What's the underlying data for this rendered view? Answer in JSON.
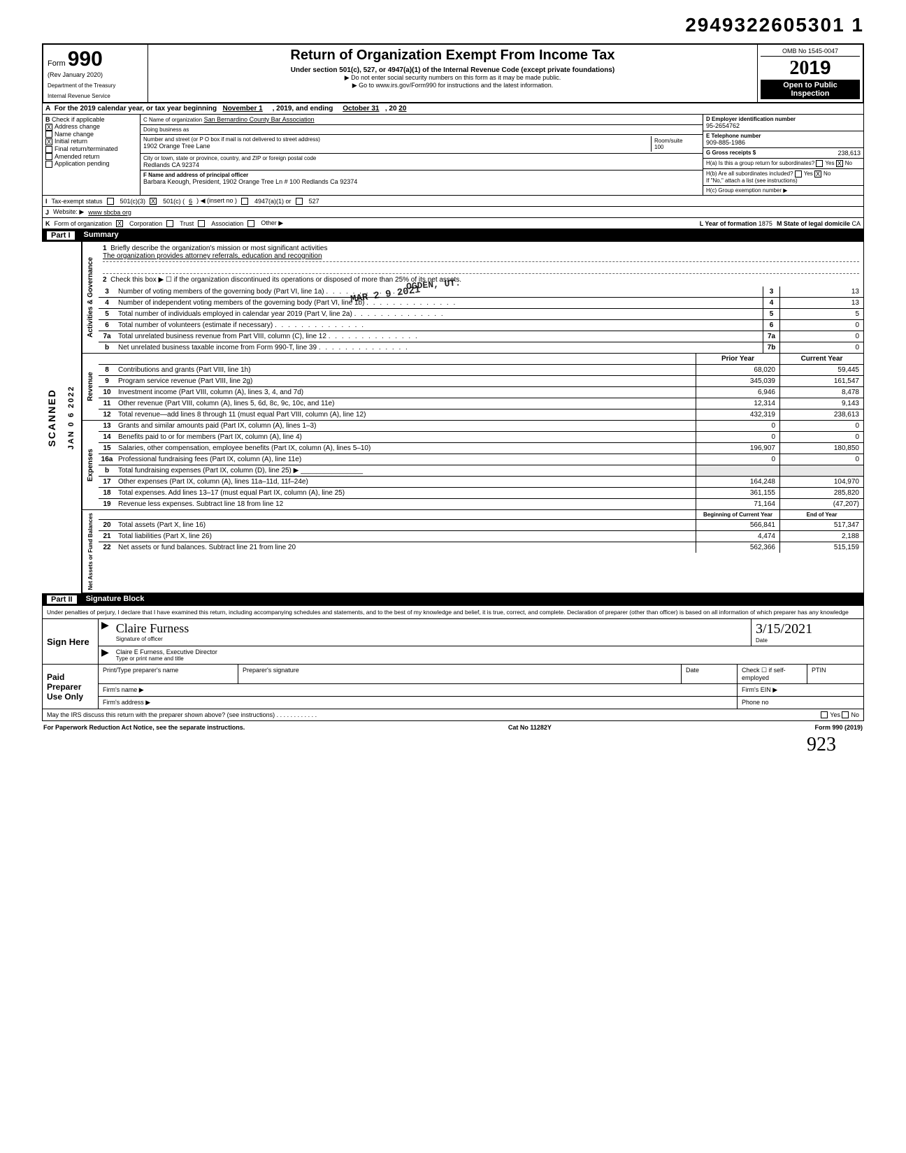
{
  "doc_number": "2949322605301 1",
  "form": {
    "label": "Form",
    "number": "990",
    "rev": "(Rev January 2020)",
    "dept1": "Department of the Treasury",
    "dept2": "Internal Revenue Service",
    "title": "Return of Organization Exempt From Income Tax",
    "subtitle": "Under section 501(c), 527, or 4947(a)(1) of the Internal Revenue Code (except private foundations)",
    "warn": "▶ Do not enter social security numbers on this form as it may be made public.",
    "goto": "▶ Go to www.irs.gov/Form990 for instructions and the latest information.",
    "omb": "OMB No 1545-0047",
    "year_prefix": "20",
    "year_bold": "19",
    "open1": "Open to Public",
    "open2": "Inspection"
  },
  "lineA": {
    "text": "For the 2019 calendar year, or tax year beginning",
    "begin": "November 1",
    "mid": ", 2019, and ending",
    "end": "October 31",
    "end2": ", 20",
    "end_yr": "20"
  },
  "colB": {
    "hdr": "Check if applicable",
    "items": [
      {
        "label": "Address change",
        "checked": true
      },
      {
        "label": "Name change",
        "checked": false
      },
      {
        "label": "Initial return",
        "checked": true
      },
      {
        "label": "Final return/terminated",
        "checked": false
      },
      {
        "label": "Amended return",
        "checked": false
      },
      {
        "label": "Application pending",
        "checked": false
      }
    ]
  },
  "colC": {
    "name_lbl": "C Name of organization",
    "name": "San Bernardino County Bar Association",
    "dba_lbl": "Doing business as",
    "dba": "",
    "addr_lbl": "Number and street (or P O box if mail is not delivered to street address)",
    "addr": "1902 Orange Tree Lane",
    "city_lbl": "City or town, state or province, country, and ZIP or foreign postal code",
    "city": "Redlands CA 92374",
    "room_lbl": "Room/suite",
    "room": "100",
    "officer_lbl": "F Name and address of principal officer",
    "officer": "Barbara Keough, President, 1902 Orange Tree Ln # 100 Redlands Ca 92374"
  },
  "colD": {
    "ein_lbl": "D Employer identification number",
    "ein": "95-2654762",
    "tel_lbl": "E Telephone number",
    "tel": "909-885-1986",
    "gross_lbl": "G Gross receipts $",
    "gross": "238,613",
    "ha": "H(a) Is this a group return for subordinates?",
    "ha_yes": "Yes",
    "ha_no": "No",
    "ha_no_checked": true,
    "hb": "H(b) Are all subordinates included?",
    "hb_yes": "Yes",
    "hb_no": "No",
    "hb_no_checked": true,
    "hb_note": "If \"No,\" attach a list (see instructions)",
    "hc": "H(c) Group exemption number ▶"
  },
  "lineI": {
    "lbl": "Tax-exempt status",
    "opt1": "501(c)(3)",
    "opt2_pre": "501(c) (",
    "opt2_num": "6",
    "opt2_post": ") ◀ (insert no )",
    "opt2_checked": true,
    "opt3": "4947(a)(1) or",
    "opt4": "527"
  },
  "lineJ": {
    "lbl": "Website: ▶",
    "val": "www sbcba org"
  },
  "lineK": {
    "lbl": "Form of organization",
    "corp": "Corporation",
    "corp_checked": true,
    "trust": "Trust",
    "assoc": "Association",
    "other": "Other ▶",
    "yof_lbl": "L Year of formation",
    "yof": "1875",
    "state_lbl": "M State of legal domicile",
    "state": "CA"
  },
  "partI": {
    "num": "Part I",
    "title": "Summary"
  },
  "side_labels": {
    "gov": "Activities & Governance",
    "rev": "Revenue",
    "exp": "Expenses",
    "net": "Net Assets or\nFund Balances",
    "stamp_date": "JAN 0 6 2022",
    "stamp_scanned": "SCANNED"
  },
  "summary": {
    "l1_lbl": "Briefly describe the organization's mission or most significant activities",
    "l1_val": "The organization provides attorney referrals, education and recognition",
    "l2": "Check this box ▶ ☐ if the organization discontinued its operations or disposed of more than 25% of its net assets.",
    "rows_single": [
      {
        "n": "3",
        "desc": "Number of voting members of the governing body (Part VI, line 1a)",
        "box": "3",
        "val": "13"
      },
      {
        "n": "4",
        "desc": "Number of independent voting members of the governing body (Part VI, line 1b)",
        "box": "4",
        "val": "13"
      },
      {
        "n": "5",
        "desc": "Total number of individuals employed in calendar year 2019 (Part V, line 2a)",
        "box": "5",
        "val": "5"
      },
      {
        "n": "6",
        "desc": "Total number of volunteers (estimate if necessary)",
        "box": "6",
        "val": "0"
      },
      {
        "n": "7a",
        "desc": "Total unrelated business revenue from Part VIII, column (C), line 12",
        "box": "7a",
        "val": "0"
      },
      {
        "n": "b",
        "desc": "Net unrelated business taxable income from Form 990-T, line 39",
        "box": "7b",
        "val": "0"
      }
    ],
    "col_hdr_prior": "Prior Year",
    "col_hdr_curr": "Current Year",
    "rows_rev": [
      {
        "n": "8",
        "desc": "Contributions and grants (Part VIII, line 1h)",
        "p": "68,020",
        "c": "59,445"
      },
      {
        "n": "9",
        "desc": "Program service revenue (Part VIII, line 2g)",
        "p": "345,039",
        "c": "161,547"
      },
      {
        "n": "10",
        "desc": "Investment income (Part VIII, column (A), lines 3, 4, and 7d)",
        "p": "6,946",
        "c": "8,478"
      },
      {
        "n": "11",
        "desc": "Other revenue (Part VIII, column (A), lines 5, 6d, 8c, 9c, 10c, and 11e)",
        "p": "12,314",
        "c": "9,143"
      },
      {
        "n": "12",
        "desc": "Total revenue—add lines 8 through 11 (must equal Part VIII, column (A), line 12)",
        "p": "432,319",
        "c": "238,613"
      }
    ],
    "rows_exp": [
      {
        "n": "13",
        "desc": "Grants and similar amounts paid (Part IX, column (A), lines 1–3)",
        "p": "0",
        "c": "0"
      },
      {
        "n": "14",
        "desc": "Benefits paid to or for members (Part IX, column (A), line 4)",
        "p": "0",
        "c": "0"
      },
      {
        "n": "15",
        "desc": "Salaries, other compensation, employee benefits (Part IX, column (A), lines 5–10)",
        "p": "196,907",
        "c": "180,850"
      },
      {
        "n": "16a",
        "desc": "Professional fundraising fees (Part IX, column (A), line 11e)",
        "p": "0",
        "c": "0"
      },
      {
        "n": "b",
        "desc": "Total fundraising expenses (Part IX, column (D), line 25) ▶ ________________",
        "p": "",
        "c": "",
        "shade": true
      },
      {
        "n": "17",
        "desc": "Other expenses (Part IX, column (A), lines 11a–11d, 11f–24e)",
        "p": "164,248",
        "c": "104,970"
      },
      {
        "n": "18",
        "desc": "Total expenses. Add lines 13–17 (must equal Part IX, column (A), line 25)",
        "p": "361,155",
        "c": "285,820"
      },
      {
        "n": "19",
        "desc": "Revenue less expenses. Subtract line 18 from line 12",
        "p": "71,164",
        "c": "(47,207)"
      }
    ],
    "col_hdr_beg": "Beginning of Current Year",
    "col_hdr_end": "End of Year",
    "rows_net": [
      {
        "n": "20",
        "desc": "Total assets (Part X, line 16)",
        "p": "566,841",
        "c": "517,347"
      },
      {
        "n": "21",
        "desc": "Total liabilities (Part X, line 26)",
        "p": "4,474",
        "c": "2,188"
      },
      {
        "n": "22",
        "desc": "Net assets or fund balances. Subtract line 21 from line 20",
        "p": "562,366",
        "c": "515,159"
      }
    ]
  },
  "stamps": {
    "recv": "MAR 2 9 2021",
    "ogden": "OGDEN, UT."
  },
  "partII": {
    "num": "Part II",
    "title": "Signature Block"
  },
  "sig": {
    "perjury": "Under penalties of perjury, I declare that I have examined this return, including accompanying schedules and statements, and to the best of my knowledge and belief, it is true, correct, and complete. Declaration of preparer (other than officer) is based on all information of which preparer has any knowledge",
    "sign_here": "Sign Here",
    "sig_of_officer": "Signature of officer",
    "date_lbl": "Date",
    "date_val": "3/15/2021",
    "name_title": "Claire E Furness, Executive Director",
    "type_name": "Type or print name and title",
    "paid": "Paid Preparer Use Only",
    "pname_lbl": "Print/Type preparer's name",
    "psig_lbl": "Preparer's signature",
    "pdate_lbl": "Date",
    "pcheck": "Check ☐ if self-employed",
    "ptin": "PTIN",
    "firm_name": "Firm's name ▶",
    "firm_ein": "Firm's EIN ▶",
    "firm_addr": "Firm's address ▶",
    "phone": "Phone no",
    "discuss": "May the IRS discuss this return with the preparer shown above? (see instructions)",
    "yes": "Yes",
    "no": "No"
  },
  "footer": {
    "pra": "For Paperwork Reduction Act Notice, see the separate instructions.",
    "cat": "Cat No 11282Y",
    "form": "Form 990 (2019)",
    "init": "923"
  },
  "letters": {
    "A": "A",
    "B": "B",
    "I": "I",
    "J": "J",
    "K": "K"
  }
}
